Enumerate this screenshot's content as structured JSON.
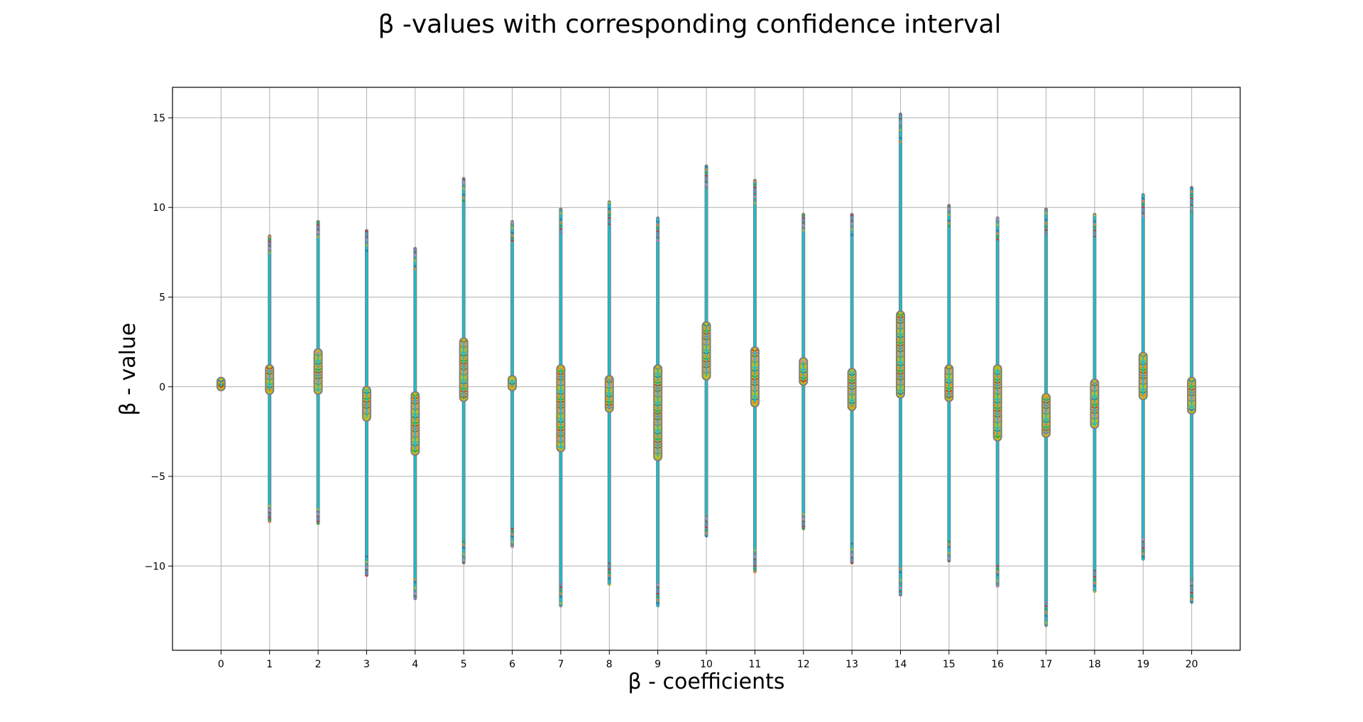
{
  "chart_data": {
    "type": "errorbar",
    "title": "β -values with corresponding confidence interval",
    "xlabel": "β - coefficients",
    "ylabel": "β - value",
    "ylim": [
      -14.7,
      16.7
    ],
    "xlim": [
      -1,
      21
    ],
    "grid": true,
    "x_ticks": [
      0,
      1,
      2,
      3,
      4,
      5,
      6,
      7,
      8,
      9,
      10,
      11,
      12,
      13,
      14,
      15,
      16,
      17,
      18,
      19,
      20
    ],
    "y_ticks": [
      -10,
      -5,
      0,
      5,
      10,
      15
    ],
    "y_tick_labels": [
      "−10",
      "−5",
      "0",
      "5",
      "10",
      "15"
    ],
    "colors": [
      "#1f77b4",
      "#ff7f0e",
      "#2ca02c",
      "#d62728",
      "#9467bd",
      "#8c564b",
      "#e377c2",
      "#7f7f7f",
      "#bcbd22",
      "#17becf"
    ],
    "coefficients": [
      {
        "x": 0,
        "est_low": 0.0,
        "est_high": 0.3,
        "ci_low": 0.0,
        "ci_high": 0.3
      },
      {
        "x": 1,
        "est_low": -0.2,
        "est_high": 1.0,
        "ci_low": -7.5,
        "ci_high": 8.4
      },
      {
        "x": 2,
        "est_low": -0.2,
        "est_high": 1.9,
        "ci_low": -7.6,
        "ci_high": 9.2
      },
      {
        "x": 3,
        "est_low": -1.7,
        "est_high": -0.2,
        "ci_low": -10.5,
        "ci_high": 8.7
      },
      {
        "x": 4,
        "est_low": -3.6,
        "est_high": -0.5,
        "ci_low": -11.8,
        "ci_high": 7.7
      },
      {
        "x": 5,
        "est_low": -0.6,
        "est_high": 2.5,
        "ci_low": -9.8,
        "ci_high": 11.6
      },
      {
        "x": 6,
        "est_low": 0.0,
        "est_high": 0.4,
        "ci_low": -8.9,
        "ci_high": 9.2
      },
      {
        "x": 7,
        "est_low": -3.4,
        "est_high": 1.0,
        "ci_low": -12.2,
        "ci_high": 9.9
      },
      {
        "x": 8,
        "est_low": -1.2,
        "est_high": 0.4,
        "ci_low": -11.0,
        "ci_high": 10.3
      },
      {
        "x": 9,
        "est_low": -3.9,
        "est_high": 1.0,
        "ci_low": -12.2,
        "ci_high": 9.4
      },
      {
        "x": 10,
        "est_low": 0.6,
        "est_high": 3.4,
        "ci_low": -8.3,
        "ci_high": 12.3
      },
      {
        "x": 11,
        "est_low": -0.9,
        "est_high": 2.0,
        "ci_low": -10.3,
        "ci_high": 11.5
      },
      {
        "x": 12,
        "est_low": 0.3,
        "est_high": 1.4,
        "ci_low": -7.9,
        "ci_high": 9.6
      },
      {
        "x": 13,
        "est_low": -1.1,
        "est_high": 0.8,
        "ci_low": -9.8,
        "ci_high": 9.6
      },
      {
        "x": 14,
        "est_low": -0.4,
        "est_high": 4.0,
        "ci_low": -11.6,
        "ci_high": 15.2
      },
      {
        "x": 15,
        "est_low": -0.6,
        "est_high": 1.0,
        "ci_low": -9.7,
        "ci_high": 10.1
      },
      {
        "x": 16,
        "est_low": -2.8,
        "est_high": 1.0,
        "ci_low": -11.1,
        "ci_high": 9.4
      },
      {
        "x": 17,
        "est_low": -2.6,
        "est_high": -0.6,
        "ci_low": -13.3,
        "ci_high": 9.9
      },
      {
        "x": 18,
        "est_low": -2.1,
        "est_high": 0.2,
        "ci_low": -11.4,
        "ci_high": 9.6
      },
      {
        "x": 19,
        "est_low": -0.5,
        "est_high": 1.7,
        "ci_low": -9.6,
        "ci_high": 10.7
      },
      {
        "x": 20,
        "est_low": -1.3,
        "est_high": 0.3,
        "ci_low": -12.0,
        "ci_high": 11.1
      }
    ]
  }
}
